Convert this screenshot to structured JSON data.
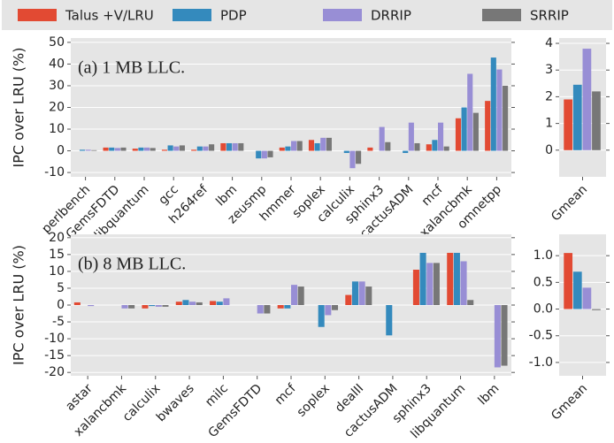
{
  "chart_data": [
    {
      "type": "bar",
      "ylabel": "IPC over LRU (%)",
      "annotation": "(a) 1 MB LLC.",
      "categories": [
        "perlbench",
        "GemsFDTD",
        "libquantum",
        "gcc",
        "h264ref",
        "lbm",
        "zeusmp",
        "hmmer",
        "soplex",
        "calculix",
        "sphinx3",
        "cactusADM",
        "mcf",
        "xalancbmk",
        "omnetpp"
      ],
      "series": [
        {
          "name": "Talus +V/LRU",
          "color": "#e24a33",
          "values": [
            0,
            1.5,
            1,
            0.5,
            0.5,
            3.5,
            0,
            1.5,
            5,
            0,
            1.5,
            0,
            3,
            15,
            23
          ]
        },
        {
          "name": "PDP",
          "color": "#348abd",
          "values": [
            0.5,
            1.5,
            1.5,
            2.5,
            2,
            3.5,
            -3.5,
            2,
            3.5,
            -1,
            0,
            -1,
            5,
            20,
            43
          ]
        },
        {
          "name": "DRRIP",
          "color": "#988ed5",
          "values": [
            0.5,
            1.3,
            1.5,
            2,
            2,
            3.5,
            -3.5,
            4.5,
            6,
            -8,
            11,
            13,
            13,
            35.5,
            37.5
          ]
        },
        {
          "name": "SRRIP",
          "color": "#777777",
          "values": [
            0.3,
            1.5,
            1.3,
            2.5,
            3,
            3.5,
            -3,
            4.5,
            6,
            -6,
            4,
            3.5,
            2,
            17.5,
            30
          ]
        }
      ],
      "ylim": [
        -12,
        52
      ],
      "yticks": [
        -10,
        0,
        10,
        20,
        30,
        40,
        50
      ],
      "grid": true
    },
    {
      "type": "bar",
      "categories": [
        "Gmean"
      ],
      "series": [
        {
          "values": [
            1.9
          ]
        },
        {
          "values": [
            2.45
          ]
        },
        {
          "values": [
            3.8
          ]
        },
        {
          "values": [
            2.2
          ]
        }
      ],
      "ylim": [
        -1,
        4.2
      ],
      "yticks": [
        0,
        1,
        2,
        3,
        4
      ],
      "grid": true
    },
    {
      "type": "bar",
      "ylabel": "IPC over LRU (%)",
      "annotation": "(b) 8 MB LLC.",
      "categories": [
        "astar",
        "xalancbmk",
        "calculix",
        "bwaves",
        "milc",
        "GemsFDTD",
        "mcf",
        "soplex",
        "dealII",
        "cactusADM",
        "sphinx3",
        "libquantum",
        "lbm"
      ],
      "series": [
        {
          "values": [
            0.8,
            0,
            -1,
            1,
            1.2,
            0,
            -1,
            0,
            3,
            0,
            10.5,
            15.5,
            0
          ]
        },
        {
          "values": [
            0,
            0,
            -0.3,
            1.5,
            1,
            0,
            -1,
            -6.5,
            7,
            -9,
            15.5,
            15.5,
            0
          ]
        },
        {
          "values": [
            -0.3,
            -1,
            -0.5,
            1,
            2,
            -2.5,
            6,
            -3,
            7,
            0,
            12.5,
            13,
            -18.5
          ]
        },
        {
          "values": [
            0,
            -1,
            -0.5,
            0.8,
            0,
            -2.5,
            5.5,
            -1.5,
            5.5,
            0,
            12.5,
            1.5,
            -18
          ]
        }
      ],
      "ylim": [
        -21,
        21
      ],
      "yticks": [
        -20,
        -15,
        -10,
        -5,
        0,
        5,
        10,
        15,
        20
      ],
      "grid": true
    },
    {
      "type": "bar",
      "categories": [
        "Gmean"
      ],
      "series": [
        {
          "values": [
            1.05
          ]
        },
        {
          "values": [
            0.7
          ]
        },
        {
          "values": [
            0.4
          ]
        },
        {
          "values": [
            -0.02
          ]
        }
      ],
      "ylim": [
        -1.25,
        1.4
      ],
      "yticks": [
        {
          "value": -1,
          "label": "-1.0"
        },
        {
          "value": -0.5,
          "label": "-0.5"
        },
        {
          "value": 0,
          "label": "0.0"
        },
        {
          "value": 0.5,
          "label": "0.5"
        },
        {
          "value": 1,
          "label": "1.0"
        }
      ],
      "grid": true
    }
  ]
}
